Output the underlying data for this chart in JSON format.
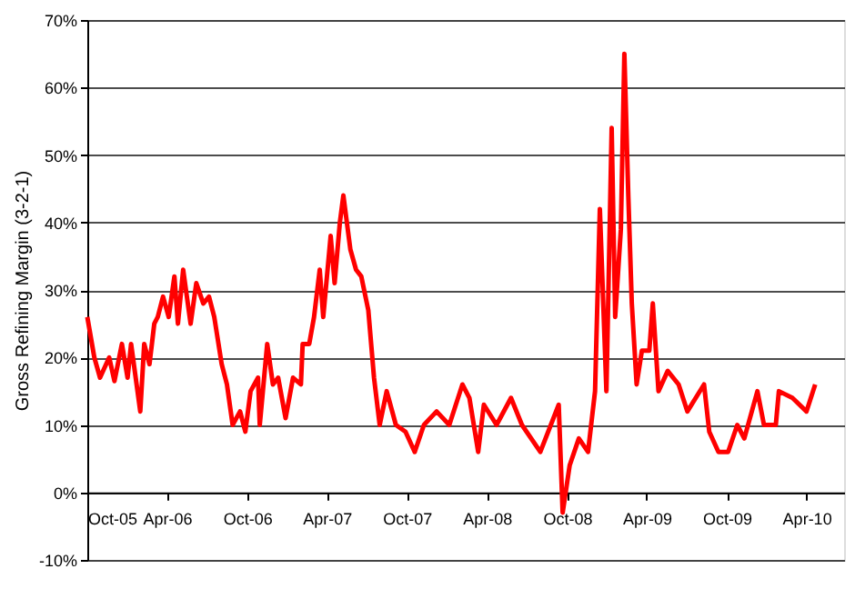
{
  "chart_data": {
    "type": "line",
    "ylabel": "Gross Refining Margin (3-2-1)",
    "xlim": [
      "2005-10-01",
      "2010-06-26"
    ],
    "ylim": [
      -10,
      70
    ],
    "yticks": [
      {
        "value": -10,
        "label": "-10%"
      },
      {
        "value": 0,
        "label": "0%"
      },
      {
        "value": 10,
        "label": "10%"
      },
      {
        "value": 20,
        "label": "20%"
      },
      {
        "value": 30,
        "label": "30%"
      },
      {
        "value": 40,
        "label": "40%"
      },
      {
        "value": 50,
        "label": "50%"
      },
      {
        "value": 60,
        "label": "60%"
      },
      {
        "value": 70,
        "label": "70%"
      }
    ],
    "xticks": [
      {
        "value": "2005-10-01",
        "label": "Oct-05"
      },
      {
        "value": "2006-04-01",
        "label": "Apr-06"
      },
      {
        "value": "2006-10-01",
        "label": "Oct-06"
      },
      {
        "value": "2007-04-01",
        "label": "Apr-07"
      },
      {
        "value": "2007-10-01",
        "label": "Oct-07"
      },
      {
        "value": "2008-04-01",
        "label": "Apr-08"
      },
      {
        "value": "2008-10-01",
        "label": "Oct-08"
      },
      {
        "value": "2009-04-01",
        "label": "Apr-09"
      },
      {
        "value": "2009-10-01",
        "label": "Oct-09"
      },
      {
        "value": "2010-04-01",
        "label": "Apr-10"
      }
    ],
    "grid": "y",
    "marker": "none",
    "line_style": "solid",
    "x": [
      "2005-10-01",
      "2005-10-17",
      "2005-10-30",
      "2005-11-20",
      "2005-12-02",
      "2005-12-19",
      "2006-01-01",
      "2006-01-09",
      "2006-01-30",
      "2006-02-08",
      "2006-02-20",
      "2006-03-03",
      "2006-03-11",
      "2006-03-23",
      "2006-04-05",
      "2006-04-18",
      "2006-04-26",
      "2006-05-08",
      "2006-05-25",
      "2006-06-07",
      "2006-06-23",
      "2006-07-06",
      "2006-07-18",
      "2006-08-04",
      "2006-08-16",
      "2006-08-29",
      "2006-09-15",
      "2006-09-27",
      "2006-10-09",
      "2006-10-26",
      "2006-10-30",
      "2006-11-16",
      "2006-11-29",
      "2006-12-11",
      "2006-12-28",
      "2007-01-14",
      "2007-02-01",
      "2007-02-05",
      "2007-02-20",
      "2007-03-03",
      "2007-03-16",
      "2007-03-24",
      "2007-04-10",
      "2007-04-19",
      "2007-05-01",
      "2007-05-09",
      "2007-05-25",
      "2007-06-07",
      "2007-06-19",
      "2007-07-05",
      "2007-07-18",
      "2007-07-31",
      "2007-08-16",
      "2007-09-06",
      "2007-09-28",
      "2007-10-19",
      "2007-11-09",
      "2007-12-08",
      "2008-01-06",
      "2008-02-05",
      "2008-02-21",
      "2008-03-12",
      "2008-03-25",
      "2008-04-23",
      "2008-05-26",
      "2008-06-20",
      "2008-08-01",
      "2008-09-12",
      "2008-09-21",
      "2008-10-07",
      "2008-10-28",
      "2008-11-18",
      "2008-12-04",
      "2008-12-15",
      "2008-12-30",
      "2009-01-11",
      "2009-01-19",
      "2009-02-01",
      "2009-02-09",
      "2009-02-18",
      "2009-02-26",
      "2009-03-09",
      "2009-03-21",
      "2009-04-07",
      "2009-04-15",
      "2009-04-28",
      "2009-05-19",
      "2009-06-13",
      "2009-07-03",
      "2009-08-10",
      "2009-08-22",
      "2009-09-12",
      "2009-10-04",
      "2009-10-25",
      "2009-11-10",
      "2009-12-10",
      "2009-12-25",
      "2010-01-21",
      "2010-01-28",
      "2010-02-28",
      "2010-04-01",
      "2010-04-21"
    ],
    "series": [
      {
        "color": "#ff0000",
        "values": [
          26,
          20,
          17,
          20,
          16.5,
          22,
          17,
          22,
          12,
          22,
          19,
          25,
          26,
          29,
          26,
          32,
          25,
          33,
          25,
          31,
          28,
          29,
          26,
          19,
          16,
          10,
          12,
          9,
          15,
          17,
          10,
          22,
          16,
          17,
          11,
          17,
          16,
          22,
          22,
          26,
          33,
          26,
          38,
          31,
          40,
          44,
          36,
          33,
          32,
          27,
          17,
          10,
          15,
          10,
          9,
          6,
          10,
          12,
          10,
          16,
          14,
          6,
          13,
          10,
          14,
          10,
          6,
          13,
          -3,
          4,
          8,
          6,
          15,
          42,
          15,
          54,
          26,
          39,
          65,
          44,
          28,
          16,
          21,
          21,
          28,
          15,
          18,
          16,
          12,
          16,
          9,
          6,
          6,
          10,
          8,
          15,
          10,
          10,
          15,
          14,
          12,
          16
        ]
      }
    ]
  }
}
